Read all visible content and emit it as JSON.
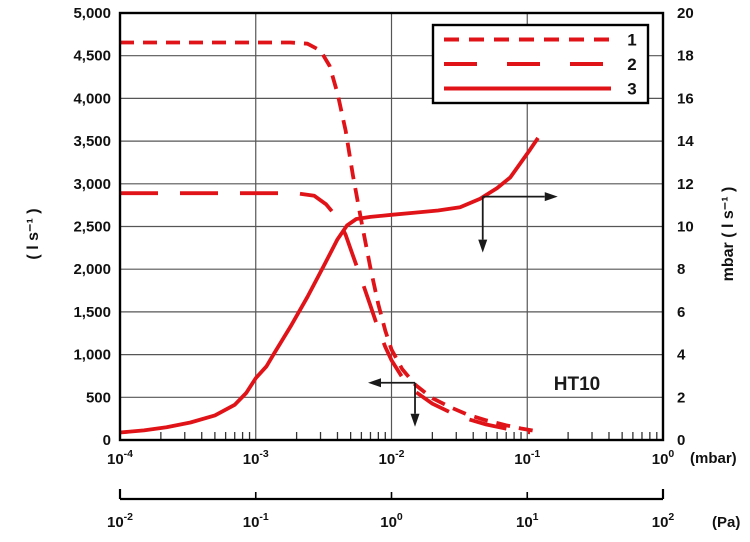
{
  "chart_data": {
    "type": "line",
    "title": "",
    "annotation_label": "HT10",
    "x": {
      "scale": "log",
      "min_mbar": 0.0001,
      "max_mbar": 1,
      "primary_unit": "(mbar)",
      "secondary_unit": "(Pa)",
      "mbar_exponents": [
        -4,
        -3,
        -2,
        -1,
        0
      ],
      "pa_exponents": [
        -2,
        -1,
        0,
        1,
        2
      ]
    },
    "y_left": {
      "title": "( l s⁻¹ )",
      "min": 0,
      "max": 5000,
      "tick_step": 500
    },
    "y_right": {
      "title": "mbar ( l s⁻¹ )",
      "min": 0,
      "max": 20,
      "tick_step": 2
    },
    "grid": true,
    "colors": {
      "curve": "#e01318",
      "grid": "#565656",
      "frame": "#000000",
      "text": "#111111",
      "arrow": "#1a1a1a",
      "background": "#ffffff"
    },
    "legend": {
      "position": "top-right",
      "items": [
        {
          "label": "1",
          "style": "short-dash"
        },
        {
          "label": "2",
          "style": "long-dash"
        },
        {
          "label": "3",
          "style": "solid"
        }
      ]
    },
    "arrows": [
      {
        "name": "read-left-axis",
        "x_mbar": 0.0149,
        "value": 670,
        "axis": "left",
        "arms": [
          {
            "dir": "left",
            "len": 47
          },
          {
            "dir": "down",
            "len": 44
          }
        ]
      },
      {
        "name": "read-right-axis",
        "x_mbar": 0.047,
        "value": 11.4,
        "axis": "right",
        "arms": [
          {
            "dir": "right",
            "len": 75
          },
          {
            "dir": "down",
            "len": 56
          }
        ]
      }
    ],
    "series": [
      {
        "name": "1",
        "style": "short-dash",
        "axis": "left",
        "points": [
          [
            0.0001,
            4655
          ],
          [
            0.0005,
            4655
          ],
          [
            0.001,
            4655
          ],
          [
            0.0018,
            4655
          ],
          [
            0.0024,
            4640
          ],
          [
            0.003,
            4560
          ],
          [
            0.0035,
            4380
          ],
          [
            0.004,
            4060
          ],
          [
            0.0046,
            3620
          ],
          [
            0.0052,
            3100
          ],
          [
            0.006,
            2560
          ],
          [
            0.007,
            2010
          ],
          [
            0.008,
            1590
          ],
          [
            0.009,
            1280
          ],
          [
            0.01,
            1060
          ],
          [
            0.012,
            830
          ],
          [
            0.015,
            645
          ],
          [
            0.02,
            490
          ],
          [
            0.027,
            385
          ],
          [
            0.036,
            300
          ],
          [
            0.05,
            230
          ],
          [
            0.07,
            172
          ],
          [
            0.09,
            135
          ],
          [
            0.115,
            105
          ]
        ]
      },
      {
        "name": "2",
        "style": "long-dash",
        "axis": "left",
        "points": [
          [
            0.0001,
            2890
          ],
          [
            0.0008,
            2890
          ],
          [
            0.0015,
            2890
          ],
          [
            0.002,
            2890
          ],
          [
            0.0027,
            2860
          ],
          [
            0.0033,
            2760
          ],
          [
            0.004,
            2600
          ],
          [
            0.0046,
            2400
          ],
          [
            0.0052,
            2160
          ],
          [
            0.006,
            1880
          ],
          [
            0.007,
            1570
          ],
          [
            0.008,
            1300
          ],
          [
            0.009,
            1090
          ],
          [
            0.01,
            935
          ],
          [
            0.012,
            735
          ],
          [
            0.015,
            565
          ],
          [
            0.02,
            425
          ],
          [
            0.027,
            325
          ],
          [
            0.036,
            248
          ],
          [
            0.05,
            182
          ],
          [
            0.07,
            132
          ],
          [
            0.09,
            102
          ],
          [
            0.105,
            90
          ]
        ]
      },
      {
        "name": "3",
        "style": "solid",
        "axis": "right",
        "points": [
          [
            0.0001,
            0.35
          ],
          [
            0.00015,
            0.45
          ],
          [
            0.00022,
            0.6
          ],
          [
            0.00033,
            0.82
          ],
          [
            0.0005,
            1.15
          ],
          [
            0.0007,
            1.65
          ],
          [
            0.00085,
            2.2
          ],
          [
            0.001,
            2.9
          ],
          [
            0.0012,
            3.45
          ],
          [
            0.00135,
            4.0
          ],
          [
            0.0018,
            5.3
          ],
          [
            0.0024,
            6.7
          ],
          [
            0.0032,
            8.2
          ],
          [
            0.004,
            9.4
          ],
          [
            0.0047,
            10.05
          ],
          [
            0.0055,
            10.35
          ],
          [
            0.007,
            10.45
          ],
          [
            0.01,
            10.55
          ],
          [
            0.015,
            10.65
          ],
          [
            0.022,
            10.75
          ],
          [
            0.032,
            10.9
          ],
          [
            0.045,
            11.3
          ],
          [
            0.06,
            11.8
          ],
          [
            0.075,
            12.3
          ],
          [
            0.09,
            13.0
          ],
          [
            0.105,
            13.6
          ],
          [
            0.12,
            14.15
          ]
        ]
      }
    ]
  }
}
